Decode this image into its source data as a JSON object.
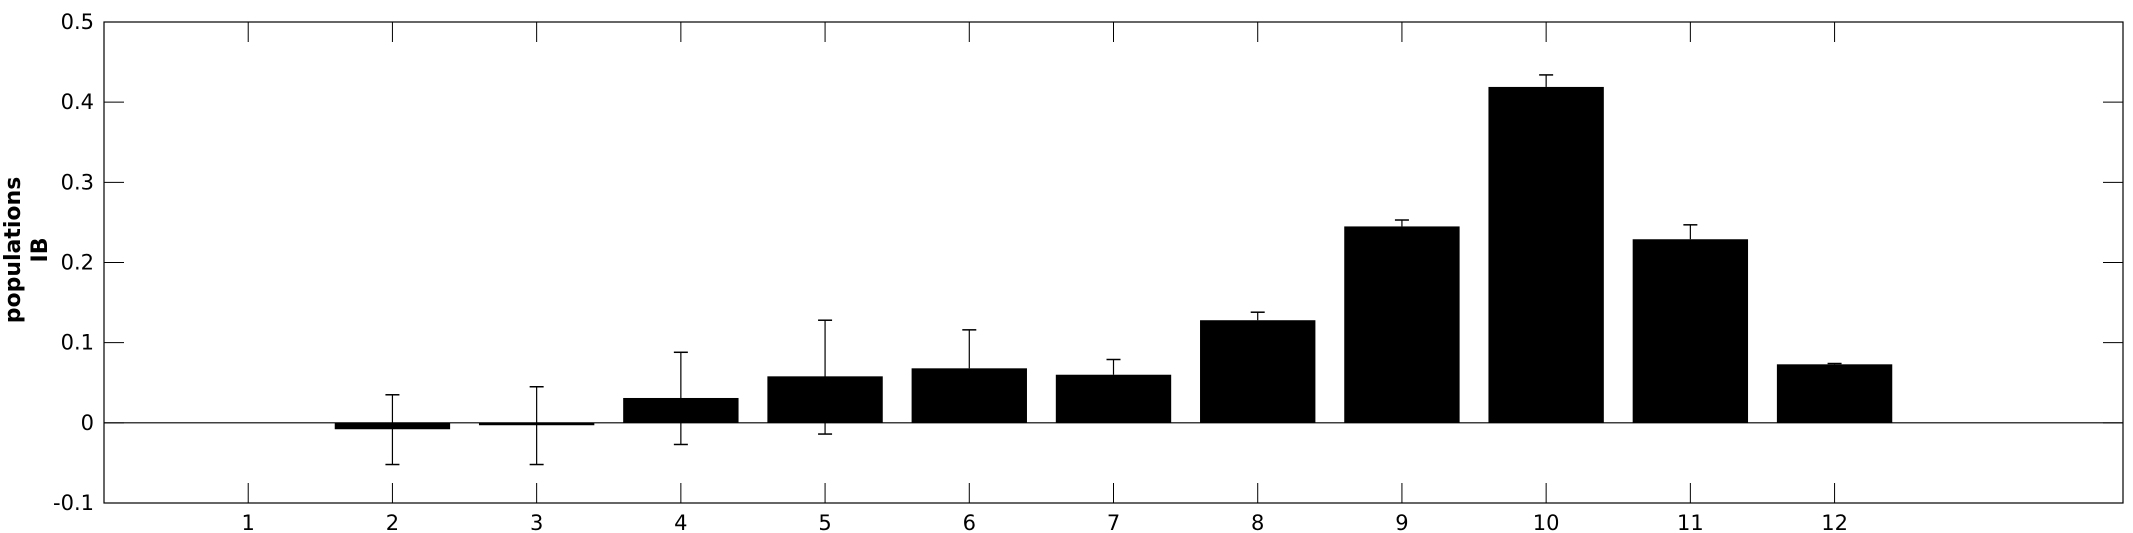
{
  "chart_data": {
    "type": "bar",
    "categories": [
      "1",
      "2",
      "3",
      "4",
      "5",
      "6",
      "7",
      "8",
      "9",
      "10",
      "11",
      "12"
    ],
    "values": [
      0.0,
      -0.008,
      -0.003,
      0.031,
      0.058,
      0.068,
      0.06,
      0.128,
      0.245,
      0.419,
      0.229,
      0.073
    ],
    "error_plus": [
      0.0,
      0.043,
      0.048,
      0.057,
      0.07,
      0.048,
      0.019,
      0.01,
      0.008,
      0.015,
      0.018,
      0.001
    ],
    "error_minus": [
      0.0,
      0.044,
      0.049,
      0.058,
      0.072,
      0.0,
      0.0,
      0.0,
      0.0,
      0.0,
      0.0,
      0.0
    ],
    "title": "",
    "xlabel": "",
    "ylabel_lines": [
      "populations",
      "IB"
    ],
    "ylim": [
      -0.1,
      0.5
    ],
    "yticks": [
      -0.1,
      0,
      0.1,
      0.2,
      0.3,
      0.4,
      0.5
    ],
    "ytick_labels": [
      "-0.1",
      "0",
      "0.1",
      "0.2",
      "0.3",
      "0.4",
      "0.5"
    ],
    "xlim": [
      0,
      14
    ],
    "grid": false,
    "bar_color": "#000000"
  }
}
